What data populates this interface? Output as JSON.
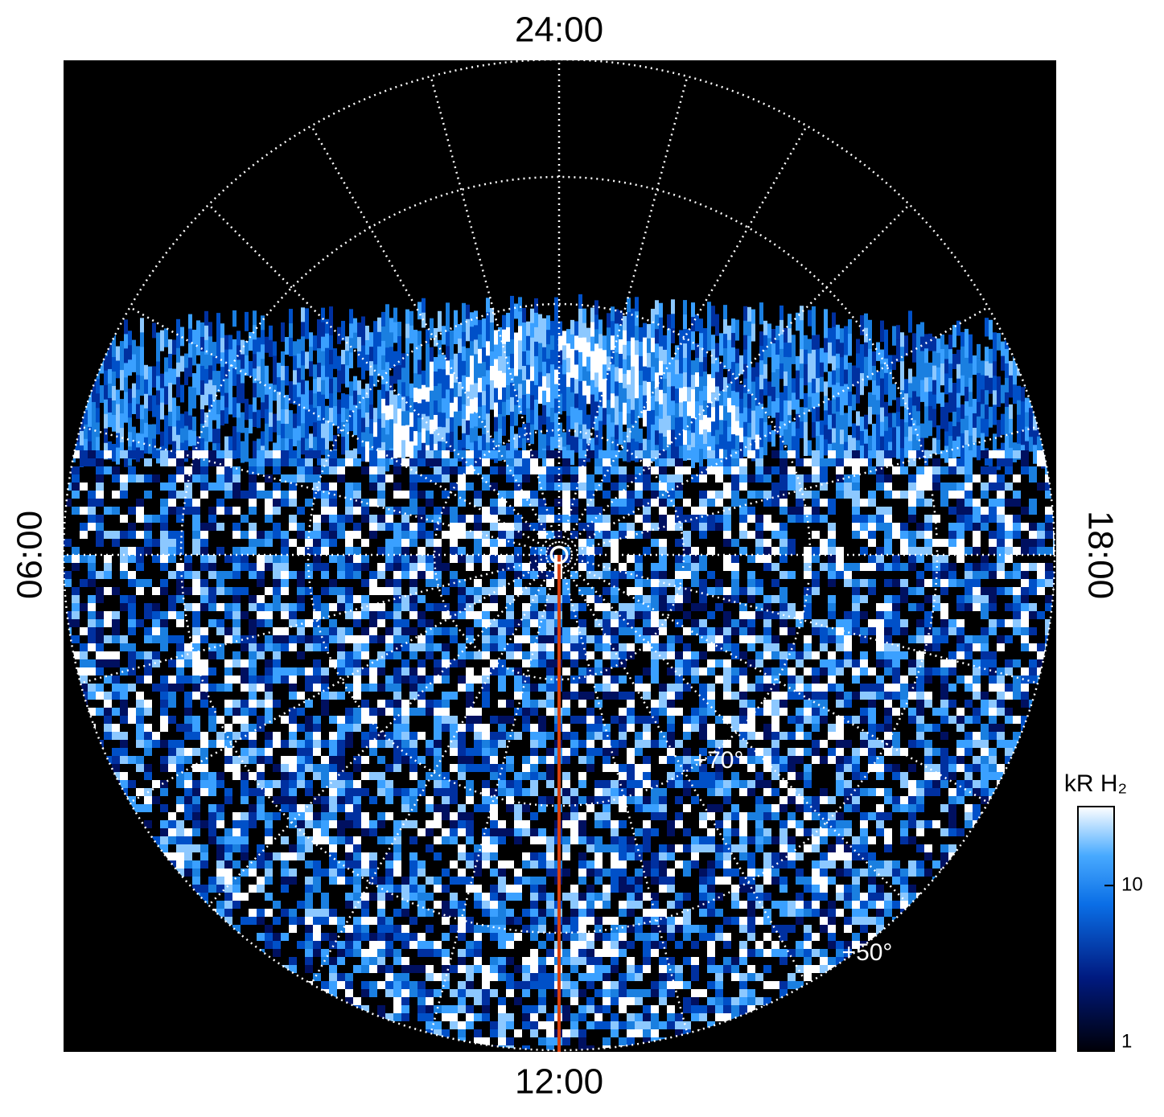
{
  "labels": {
    "top": "24:00",
    "bottom": "12:00",
    "left": "06:00",
    "right": "18:00"
  },
  "latitude_labels": [
    "+70°",
    "+50°"
  ],
  "colorbar": {
    "title": "kR H₂",
    "range": [
      1,
      30
    ],
    "log": true,
    "ticks": [
      1,
      10
    ]
  }
}
